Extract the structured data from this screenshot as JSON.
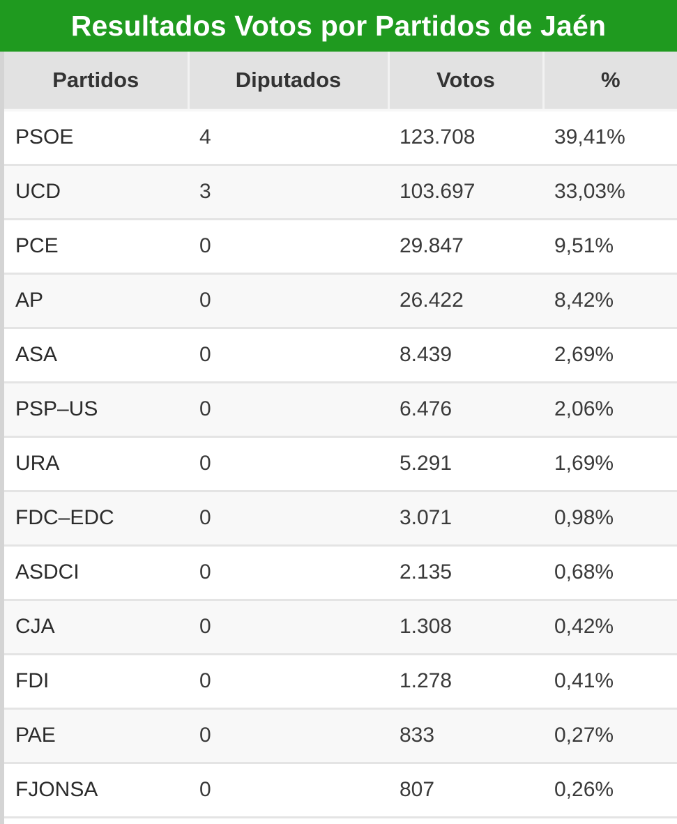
{
  "title": "Resultados Votos por Partidos de Jaén",
  "columns": [
    "Partidos",
    "Diputados",
    "Votos",
    "%"
  ],
  "rows": [
    {
      "partido": "PSOE",
      "diputados": "4",
      "votos": "123.708",
      "pct": "39,41%"
    },
    {
      "partido": "UCD",
      "diputados": "3",
      "votos": "103.697",
      "pct": "33,03%"
    },
    {
      "partido": "PCE",
      "diputados": "0",
      "votos": "29.847",
      "pct": "9,51%"
    },
    {
      "partido": "AP",
      "diputados": "0",
      "votos": "26.422",
      "pct": "8,42%"
    },
    {
      "partido": "ASA",
      "diputados": "0",
      "votos": "8.439",
      "pct": "2,69%"
    },
    {
      "partido": "PSP–US",
      "diputados": "0",
      "votos": "6.476",
      "pct": "2,06%"
    },
    {
      "partido": "URA",
      "diputados": "0",
      "votos": "5.291",
      "pct": "1,69%"
    },
    {
      "partido": "FDC–EDC",
      "diputados": "0",
      "votos": "3.071",
      "pct": "0,98%"
    },
    {
      "partido": "ASDCI",
      "diputados": "0",
      "votos": "2.135",
      "pct": "0,68%"
    },
    {
      "partido": "CJA",
      "diputados": "0",
      "votos": "1.308",
      "pct": "0,42%"
    },
    {
      "partido": "FDI",
      "diputados": "0",
      "votos": "1.278",
      "pct": "0,41%"
    },
    {
      "partido": "PAE",
      "diputados": "0",
      "votos": "833",
      "pct": "0,27%"
    },
    {
      "partido": "FJONSA",
      "diputados": "0",
      "votos": "807",
      "pct": "0,26%"
    }
  ],
  "colors": {
    "title_bg": "#1f9a1f",
    "title_text": "#ffffff",
    "header_bg": "#e2e2e2"
  }
}
